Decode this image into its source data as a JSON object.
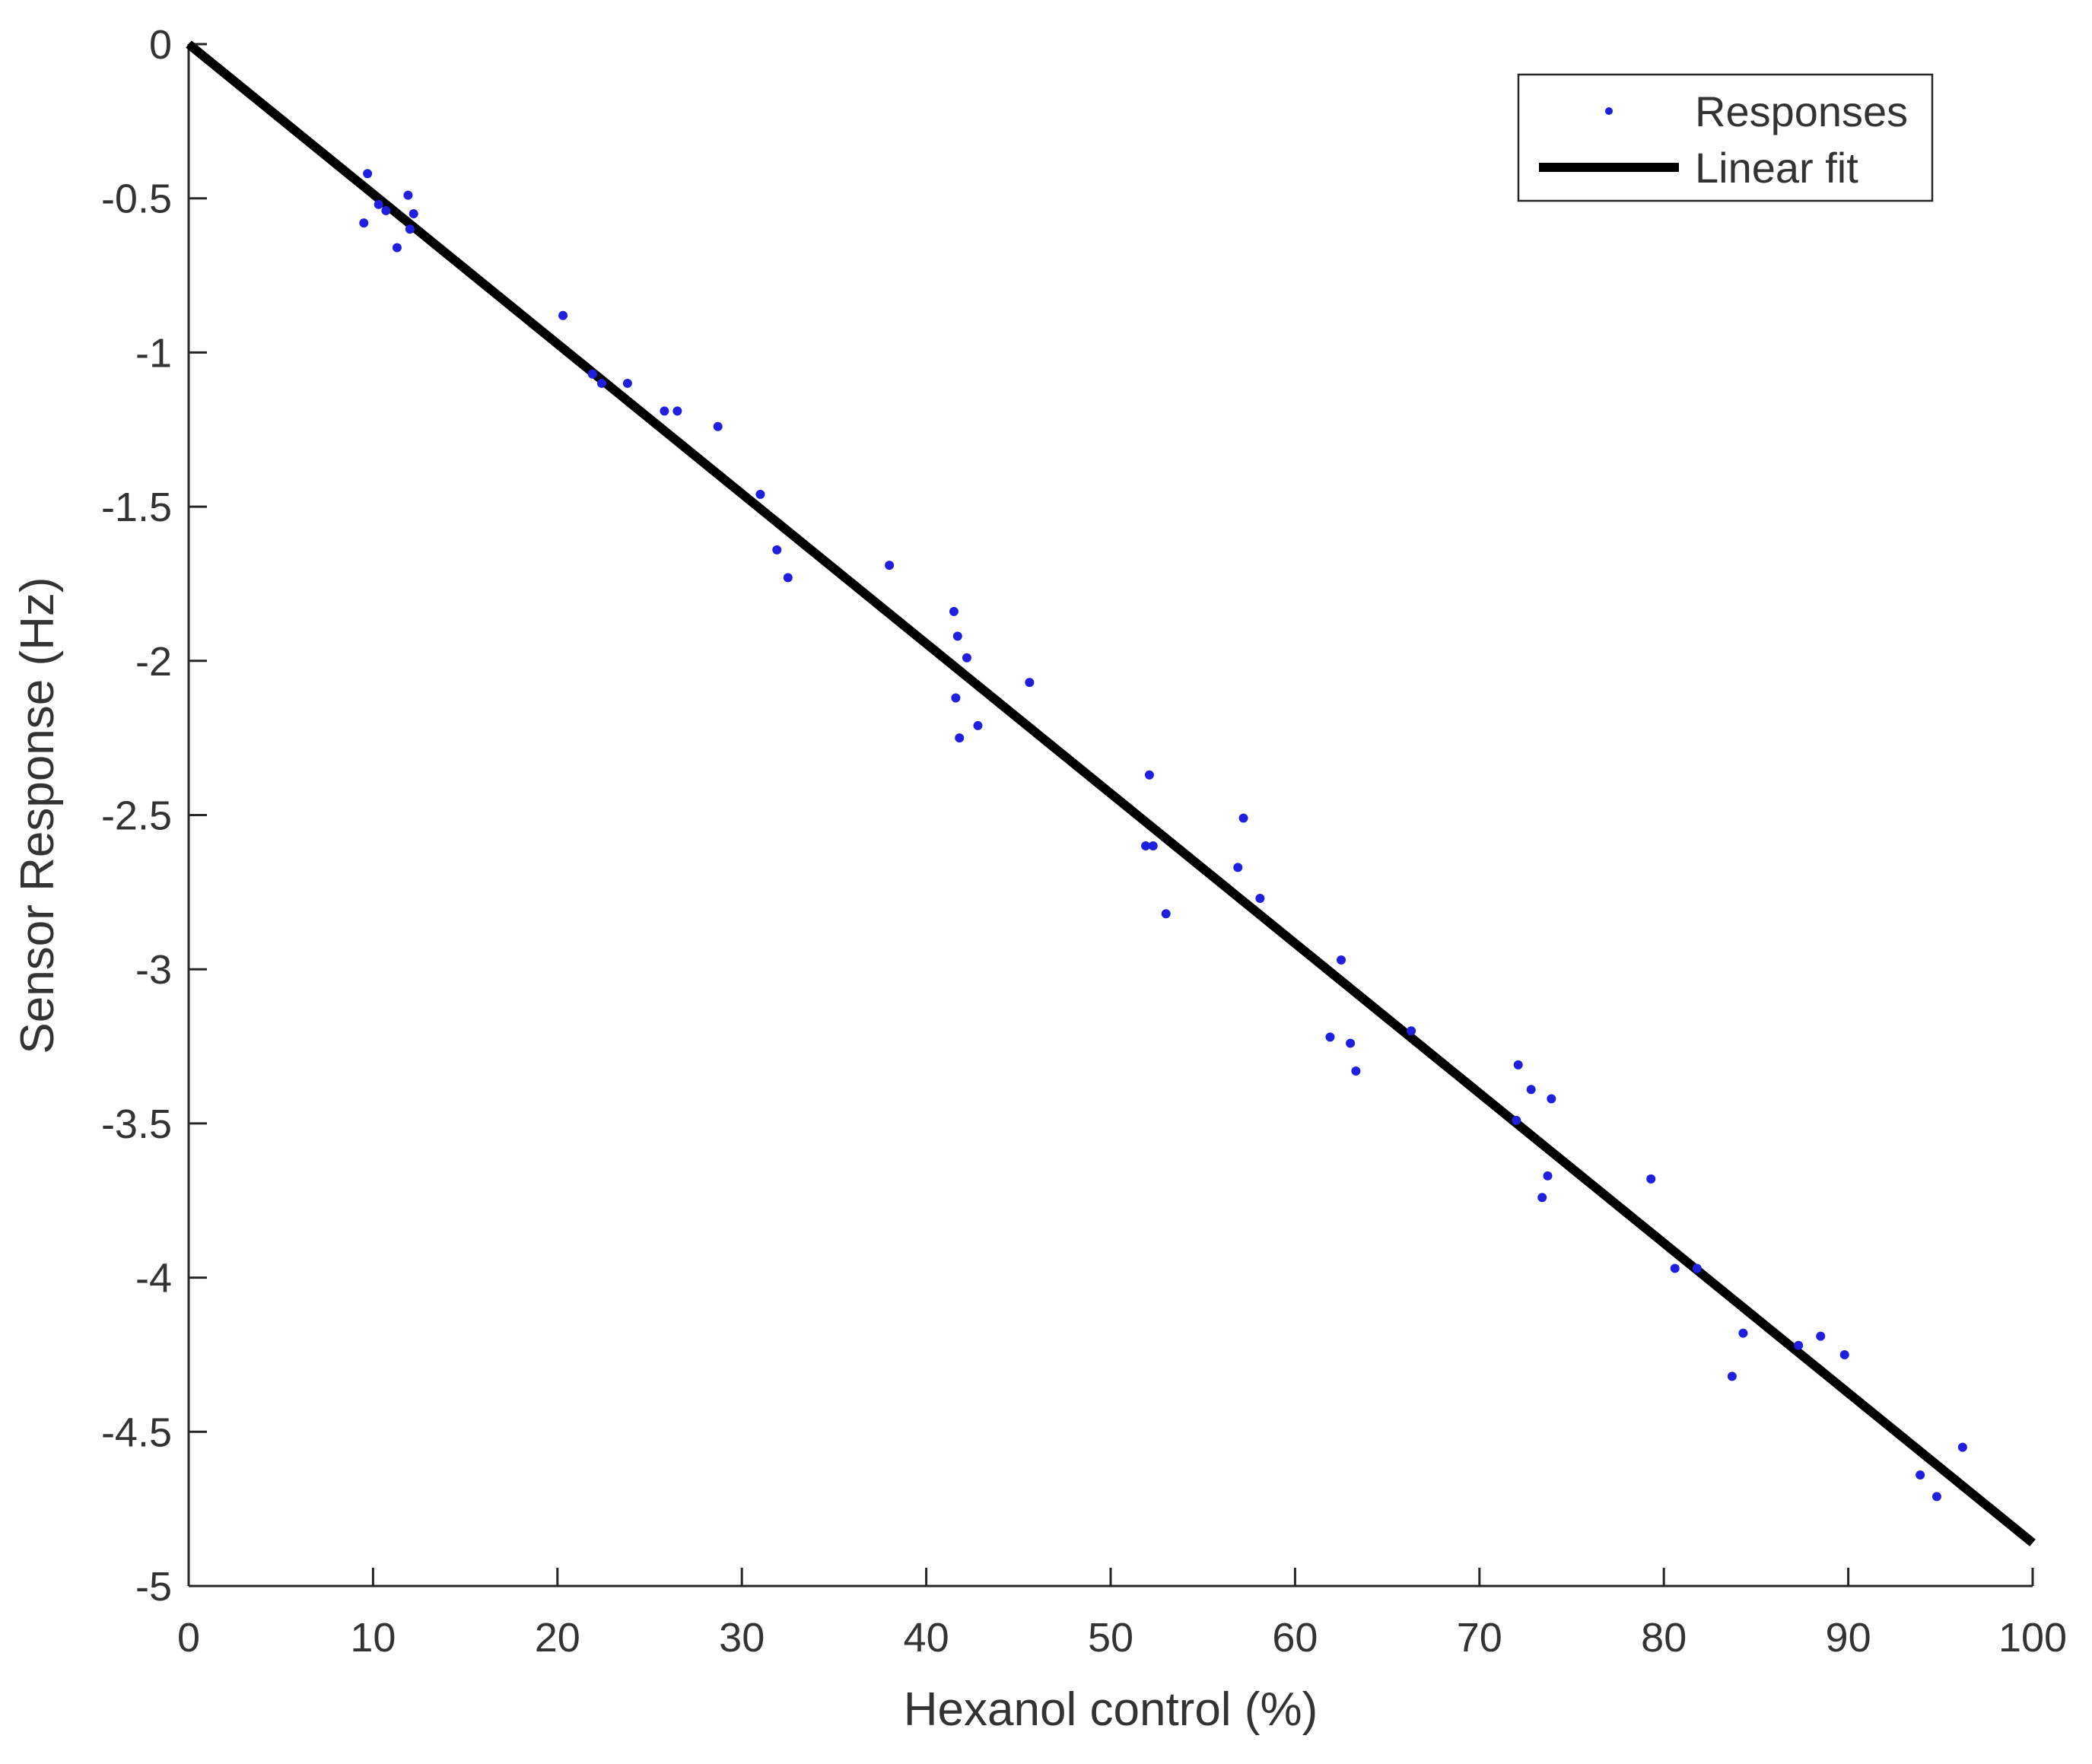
{
  "chart_data": {
    "type": "scatter",
    "xlabel": "Hexanol control (%)",
    "ylabel": "Sensor Response (Hz)",
    "xlim": [
      0,
      100
    ],
    "ylim": [
      -5,
      0
    ],
    "x_ticks": [
      0,
      10,
      20,
      30,
      40,
      50,
      60,
      70,
      80,
      90,
      100
    ],
    "y_ticks": [
      0,
      -0.5,
      -1,
      -1.5,
      -2,
      -2.5,
      -3,
      -3.5,
      -4,
      -4.5,
      -5
    ],
    "x_tick_labels": [
      "0",
      "10",
      "20",
      "30",
      "40",
      "50",
      "60",
      "70",
      "80",
      "90",
      "100"
    ],
    "y_tick_labels": [
      "0",
      "-0.5",
      "-1",
      "-1.5",
      "-2",
      "-2.5",
      "-3",
      "-3.5",
      "-4",
      "-4.5",
      "-5"
    ],
    "grid": false,
    "legend_position": "top-right",
    "series": [
      {
        "name": "Responses",
        "kind": "points",
        "color": "#1f1fe0",
        "points": [
          [
            9.7,
            -0.42
          ],
          [
            9.5,
            -0.58
          ],
          [
            10.3,
            -0.52
          ],
          [
            10.7,
            -0.54
          ],
          [
            11.3,
            -0.66
          ],
          [
            11.9,
            -0.49
          ],
          [
            12.0,
            -0.6
          ],
          [
            12.2,
            -0.55
          ],
          [
            20.3,
            -0.88
          ],
          [
            21.9,
            -1.07
          ],
          [
            22.4,
            -1.1
          ],
          [
            23.8,
            -1.1
          ],
          [
            25.8,
            -1.19
          ],
          [
            26.5,
            -1.19
          ],
          [
            28.7,
            -1.24
          ],
          [
            31.0,
            -1.46
          ],
          [
            31.9,
            -1.64
          ],
          [
            32.5,
            -1.73
          ],
          [
            38.0,
            -1.69
          ],
          [
            41.5,
            -1.84
          ],
          [
            41.7,
            -1.92
          ],
          [
            42.2,
            -1.99
          ],
          [
            41.6,
            -2.12
          ],
          [
            41.8,
            -2.25
          ],
          [
            42.8,
            -2.21
          ],
          [
            45.6,
            -2.07
          ],
          [
            52.1,
            -2.37
          ],
          [
            51.9,
            -2.6
          ],
          [
            52.3,
            -2.6
          ],
          [
            53.0,
            -2.82
          ],
          [
            57.2,
            -2.51
          ],
          [
            56.9,
            -2.67
          ],
          [
            58.1,
            -2.77
          ],
          [
            62.5,
            -2.97
          ],
          [
            61.9,
            -3.22
          ],
          [
            63.0,
            -3.24
          ],
          [
            63.3,
            -3.33
          ],
          [
            66.3,
            -3.2
          ],
          [
            72.1,
            -3.31
          ],
          [
            72.8,
            -3.39
          ],
          [
            73.9,
            -3.42
          ],
          [
            72.0,
            -3.49
          ],
          [
            73.7,
            -3.67
          ],
          [
            73.4,
            -3.74
          ],
          [
            79.3,
            -3.68
          ],
          [
            80.6,
            -3.97
          ],
          [
            81.8,
            -3.97
          ],
          [
            84.3,
            -4.18
          ],
          [
            83.7,
            -4.32
          ],
          [
            87.3,
            -4.22
          ],
          [
            88.5,
            -4.19
          ],
          [
            89.8,
            -4.25
          ],
          [
            93.9,
            -4.64
          ],
          [
            94.8,
            -4.71
          ],
          [
            96.2,
            -4.55
          ]
        ]
      },
      {
        "name": "Linear fit",
        "kind": "line",
        "color": "#000000",
        "x": [
          0,
          100
        ],
        "y": [
          0,
          -4.86
        ]
      }
    ]
  }
}
